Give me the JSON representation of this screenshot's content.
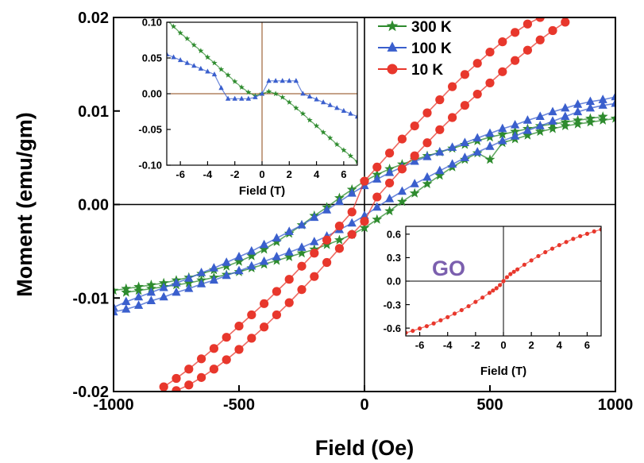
{
  "chart_data": [
    {
      "type": "line",
      "xlabel": "Field (Oe)",
      "ylabel": "Moment (emu/gm)",
      "xlim": [
        -1000,
        1000
      ],
      "ylim": [
        -0.02,
        0.02
      ],
      "x_ticks": [
        "-1000",
        "-500",
        "0",
        "500",
        "1000"
      ],
      "y_ticks": [
        "-0.02",
        "-0.01",
        "0.00",
        "0.01",
        "0.02"
      ],
      "legend_position": "top-right",
      "grid": false,
      "series": [
        {
          "name": "300 K",
          "color": "#2e8b2e",
          "marker": "star",
          "upper": {
            "x": [
              -1000,
              -950,
              -900,
              -850,
              -800,
              -750,
              -700,
              -650,
              -600,
              -550,
              -500,
              -450,
              -400,
              -350,
              -300,
              -250,
              -200,
              -150,
              -100,
              -50,
              0,
              50,
              100,
              150,
              200,
              250,
              300,
              350,
              400,
              450,
              500,
              550,
              600,
              650,
              700,
              750,
              800,
              850,
              900,
              950
            ],
            "y": [
              -0.0092,
              -0.009,
              -0.0088,
              -0.0086,
              -0.0084,
              -0.0081,
              -0.0078,
              -0.0074,
              -0.007,
              -0.0066,
              -0.0061,
              -0.0055,
              -0.0048,
              -0.004,
              -0.0031,
              -0.0022,
              -0.0012,
              -0.0003,
              0.0007,
              0.0016,
              0.0025,
              0.0032,
              0.0038,
              0.0043,
              0.0048,
              0.0052,
              0.0056,
              0.006,
              0.0064,
              0.0068,
              0.0072,
              0.0075,
              0.0078,
              0.0081,
              0.0084,
              0.0086,
              0.0088,
              0.009,
              0.0092,
              0.0094
            ]
          },
          "lower": {
            "x": [
              -950,
              -900,
              -850,
              -800,
              -750,
              -700,
              -650,
              -600,
              -550,
              -500,
              -450,
              -400,
              -350,
              -300,
              -250,
              -200,
              -150,
              -100,
              -50,
              0,
              50,
              100,
              150,
              200,
              250,
              300,
              350,
              400,
              450,
              500,
              550,
              600,
              650,
              700,
              750,
              800,
              850,
              900,
              950,
              1000
            ],
            "y": [
              -0.0094,
              -0.0092,
              -0.009,
              -0.0088,
              -0.0086,
              -0.0084,
              -0.0081,
              -0.0078,
              -0.0075,
              -0.0072,
              -0.0068,
              -0.0064,
              -0.006,
              -0.0056,
              -0.0052,
              -0.0048,
              -0.0043,
              -0.0038,
              -0.0032,
              -0.0025,
              -0.0016,
              -0.0007,
              0.0003,
              0.0012,
              0.0022,
              0.0031,
              0.004,
              0.0048,
              0.0055,
              0.0048,
              0.0066,
              0.007,
              0.0074,
              0.0078,
              0.0081,
              0.0084,
              0.0086,
              0.0088,
              0.009,
              0.0092
            ]
          }
        },
        {
          "name": "100 K",
          "color": "#3a5fcd",
          "marker": "triangle",
          "upper": {
            "x": [
              -1000,
              -950,
              -900,
              -850,
              -800,
              -750,
              -700,
              -650,
              -600,
              -550,
              -500,
              -450,
              -400,
              -350,
              -300,
              -250,
              -200,
              -150,
              -100,
              -50,
              0,
              50,
              100,
              150,
              200,
              250,
              300,
              350,
              400,
              450,
              500,
              550,
              600,
              650,
              700,
              750,
              800,
              850,
              900,
              950,
              1000
            ],
            "y": [
              -0.011,
              -0.0104,
              -0.0099,
              -0.0094,
              -0.0089,
              -0.0084,
              -0.0079,
              -0.0073,
              -0.0068,
              -0.0062,
              -0.0056,
              -0.005,
              -0.0043,
              -0.0036,
              -0.0029,
              -0.0022,
              -0.0014,
              -0.0006,
              0.0003,
              0.0012,
              0.002,
              0.0027,
              0.0034,
              0.004,
              0.0046,
              0.0051,
              0.0056,
              0.0061,
              0.0066,
              0.0071,
              0.0076,
              0.0081,
              0.0085,
              0.009,
              0.0094,
              0.0099,
              0.0103,
              0.0107,
              0.011,
              0.0112,
              0.0115
            ]
          },
          "lower": {
            "x": [
              -1000,
              -950,
              -900,
              -850,
              -800,
              -750,
              -700,
              -650,
              -600,
              -550,
              -500,
              -450,
              -400,
              -350,
              -300,
              -250,
              -200,
              -150,
              -100,
              -50,
              0,
              50,
              100,
              150,
              200,
              250,
              300,
              350,
              400,
              450,
              500,
              550,
              600,
              650,
              700,
              750,
              800,
              850,
              900,
              950,
              1000
            ],
            "y": [
              -0.0115,
              -0.0112,
              -0.0108,
              -0.0103,
              -0.0099,
              -0.0094,
              -0.009,
              -0.0085,
              -0.0081,
              -0.0076,
              -0.0071,
              -0.0066,
              -0.0061,
              -0.0056,
              -0.0051,
              -0.0046,
              -0.004,
              -0.0034,
              -0.0027,
              -0.002,
              -0.0012,
              -0.0003,
              0.0006,
              0.0014,
              0.0022,
              0.0029,
              0.0036,
              0.0043,
              0.005,
              0.0056,
              0.0062,
              0.0068,
              0.0073,
              0.0079,
              0.0084,
              0.0089,
              0.0094,
              0.0099,
              0.0103,
              0.0106,
              0.0108
            ]
          }
        },
        {
          "name": "10 K",
          "color": "#e8372c",
          "marker": "circle",
          "upper": {
            "x": [
              -800,
              -750,
              -700,
              -650,
              -600,
              -550,
              -500,
              -450,
              -400,
              -350,
              -300,
              -250,
              -200,
              -150,
              -100,
              -50,
              0,
              50,
              100,
              150,
              200,
              250,
              300,
              350,
              400,
              450,
              500,
              550,
              600,
              650,
              700,
              750,
              800,
              850
            ],
            "y": [
              -0.0195,
              -0.0186,
              -0.0176,
              -0.0165,
              -0.0154,
              -0.0142,
              -0.013,
              -0.0118,
              -0.0106,
              -0.0093,
              -0.008,
              -0.0066,
              -0.0052,
              -0.0038,
              -0.0023,
              -0.0008,
              0.0025,
              0.004,
              0.0055,
              0.007,
              0.0084,
              0.0098,
              0.0112,
              0.0126,
              0.0139,
              0.0151,
              0.0163,
              0.0174,
              0.0184,
              0.0193,
              0.02,
              0.0206,
              0.0212,
              0.0216
            ]
          },
          "lower": {
            "x": [
              -750,
              -700,
              -650,
              -600,
              -550,
              -500,
              -450,
              -400,
              -350,
              -300,
              -250,
              -200,
              -150,
              -100,
              -50,
              0,
              50,
              100,
              150,
              200,
              250,
              300,
              350,
              400,
              450,
              500,
              550,
              600,
              650,
              700,
              750,
              800
            ],
            "y": [
              -0.0199,
              -0.0193,
              -0.0185,
              -0.0176,
              -0.0166,
              -0.0155,
              -0.0143,
              -0.0131,
              -0.0118,
              -0.0105,
              -0.0091,
              -0.0077,
              -0.0062,
              -0.0047,
              -0.0032,
              -0.0018,
              0.0008,
              0.0023,
              0.0038,
              0.0052,
              0.0066,
              0.008,
              0.0093,
              0.0106,
              0.0118,
              0.013,
              0.0142,
              0.0154,
              0.0165,
              0.0176,
              0.0186,
              0.0195
            ]
          }
        }
      ]
    },
    {
      "type": "line",
      "xlabel": "Field (T)",
      "ylabel": "",
      "xlim": [
        -7,
        7
      ],
      "ylim": [
        -0.1,
        0.1
      ],
      "x_ticks": [
        "-6",
        "-4",
        "-2",
        "0",
        "2",
        "4",
        "6"
      ],
      "y_ticks": [
        "-0.10",
        "-0.05",
        "0.00",
        "0.05",
        "0.10"
      ],
      "series": [
        {
          "name": "300 K",
          "color": "#2e8b2e",
          "marker": "star",
          "x": [
            -7,
            -6.5,
            -6,
            -5.5,
            -5,
            -4.5,
            -4,
            -3.5,
            -3,
            -2.5,
            -2,
            -1.5,
            -1,
            -0.5,
            0,
            0.5,
            1,
            1.5,
            2,
            2.5,
            3,
            3.5,
            4,
            4.5,
            5,
            5.5,
            6,
            6.5,
            7
          ],
          "y": [
            0.103,
            0.094,
            0.085,
            0.077,
            0.068,
            0.06,
            0.051,
            0.043,
            0.034,
            0.026,
            0.017,
            0.009,
            0.002,
            -0.003,
            0.0,
            0.003,
            0.0,
            -0.005,
            -0.012,
            -0.02,
            -0.028,
            -0.037,
            -0.045,
            -0.054,
            -0.062,
            -0.071,
            -0.079,
            -0.087,
            -0.095
          ]
        },
        {
          "name": "100 K",
          "color": "#3a5fcd",
          "marker": "triangle",
          "x": [
            -7,
            -6.5,
            -6,
            -5.5,
            -5,
            -4.5,
            -4,
            -3.5,
            -3,
            -2.5,
            -2,
            -1.5,
            -1,
            -0.5,
            0,
            0.5,
            1,
            1.5,
            2,
            2.5,
            3,
            3.5,
            4,
            4.5,
            5,
            5.5,
            6,
            6.5,
            7
          ],
          "y": [
            0.055,
            0.051,
            0.047,
            0.043,
            0.039,
            0.035,
            0.031,
            0.027,
            0.008,
            -0.007,
            -0.007,
            -0.007,
            -0.007,
            -0.005,
            0.0,
            0.018,
            0.018,
            0.018,
            0.018,
            0.018,
            0.0,
            -0.004,
            -0.008,
            -0.012,
            -0.016,
            -0.02,
            -0.024,
            -0.028,
            -0.032
          ]
        }
      ]
    },
    {
      "type": "line",
      "title_text": "GO",
      "title_color": "#7b5fae",
      "xlabel": "Field (T)",
      "ylabel": "",
      "xlim": [
        -7,
        7
      ],
      "ylim": [
        -0.7,
        0.7
      ],
      "x_ticks": [
        "-6",
        "-4",
        "-2",
        "0",
        "2",
        "4",
        "6"
      ],
      "y_ticks": [
        "-0.6",
        "-0.3",
        "0.0",
        "0.3",
        "0.6"
      ],
      "series": [
        {
          "name": "GO",
          "color": "#e8372c",
          "marker": "circle",
          "x": [
            -7,
            -6.5,
            -6,
            -5.5,
            -5,
            -4.5,
            -4,
            -3.5,
            -3,
            -2.5,
            -2,
            -1.5,
            -1,
            -0.75,
            -0.5,
            -0.25,
            0,
            0.25,
            0.5,
            0.75,
            1,
            1.5,
            2,
            2.5,
            3,
            3.5,
            4,
            4.5,
            5,
            5.5,
            6,
            6.5,
            7
          ],
          "y": [
            -0.66,
            -0.635,
            -0.605,
            -0.575,
            -0.54,
            -0.5,
            -0.46,
            -0.415,
            -0.37,
            -0.32,
            -0.265,
            -0.21,
            -0.15,
            -0.12,
            -0.09,
            -0.05,
            0.0,
            0.05,
            0.09,
            0.12,
            0.15,
            0.21,
            0.265,
            0.32,
            0.37,
            0.415,
            0.46,
            0.5,
            0.54,
            0.575,
            0.605,
            0.635,
            0.66
          ]
        }
      ]
    }
  ]
}
